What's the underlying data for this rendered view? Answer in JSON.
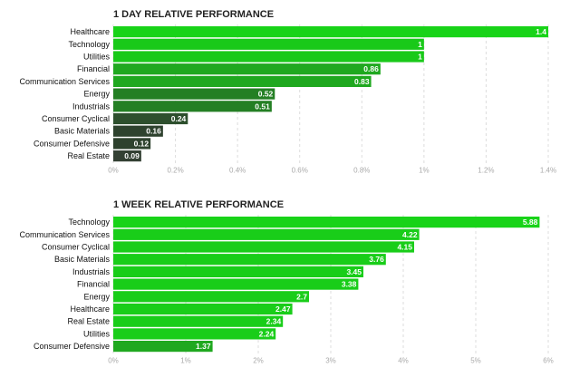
{
  "chart_data": [
    {
      "type": "bar",
      "orientation": "horizontal",
      "title": "1 DAY RELATIVE PERFORMANCE",
      "categories": [
        "Healthcare",
        "Technology",
        "Utilities",
        "Financial",
        "Communication Services",
        "Energy",
        "Industrials",
        "Consumer Cyclical",
        "Basic Materials",
        "Consumer Defensive",
        "Real Estate"
      ],
      "values": [
        1.4,
        1,
        1,
        0.86,
        0.83,
        0.52,
        0.51,
        0.24,
        0.16,
        0.12,
        0.09
      ],
      "value_labels": [
        "1.4",
        "1",
        "1",
        "0.86",
        "0.83",
        "0.52",
        "0.51",
        "0.24",
        "0.16",
        "0.12",
        "0.09"
      ],
      "colors": [
        "#18d318",
        "#19c919",
        "#19c919",
        "#1fa81f",
        "#1fa81f",
        "#247f24",
        "#247f24",
        "#2d4f2d",
        "#2e422e",
        "#2e422e",
        "#334033"
      ],
      "xlim": [
        0,
        1.4
      ],
      "xticks": [
        "0%",
        "0.2%",
        "0.4%",
        "0.6%",
        "0.8%",
        "1%",
        "1.2%",
        "1.4%"
      ],
      "xlabel": "",
      "ylabel": ""
    },
    {
      "type": "bar",
      "orientation": "horizontal",
      "title": "1 WEEK RELATIVE PERFORMANCE",
      "categories": [
        "Technology",
        "Communication Services",
        "Consumer Cyclical",
        "Basic Materials",
        "Industrials",
        "Financial",
        "Energy",
        "Healthcare",
        "Real Estate",
        "Utilities",
        "Consumer Defensive"
      ],
      "values": [
        5.88,
        4.22,
        4.15,
        3.76,
        3.45,
        3.38,
        2.7,
        2.47,
        2.34,
        2.24,
        1.37
      ],
      "value_labels": [
        "5.88",
        "4.22",
        "4.15",
        "3.76",
        "3.45",
        "3.38",
        "2.7",
        "2.47",
        "2.34",
        "2.24",
        "1.37"
      ],
      "colors": [
        "#18d318",
        "#19cd19",
        "#19cd19",
        "#19cd19",
        "#19cd19",
        "#19cd19",
        "#19cd19",
        "#19cd19",
        "#19cd19",
        "#19cd19",
        "#1fa81f"
      ],
      "xlim": [
        0,
        6
      ],
      "xticks": [
        "0%",
        "1%",
        "2%",
        "3%",
        "4%",
        "5%",
        "6%"
      ],
      "xlabel": "",
      "ylabel": ""
    }
  ]
}
